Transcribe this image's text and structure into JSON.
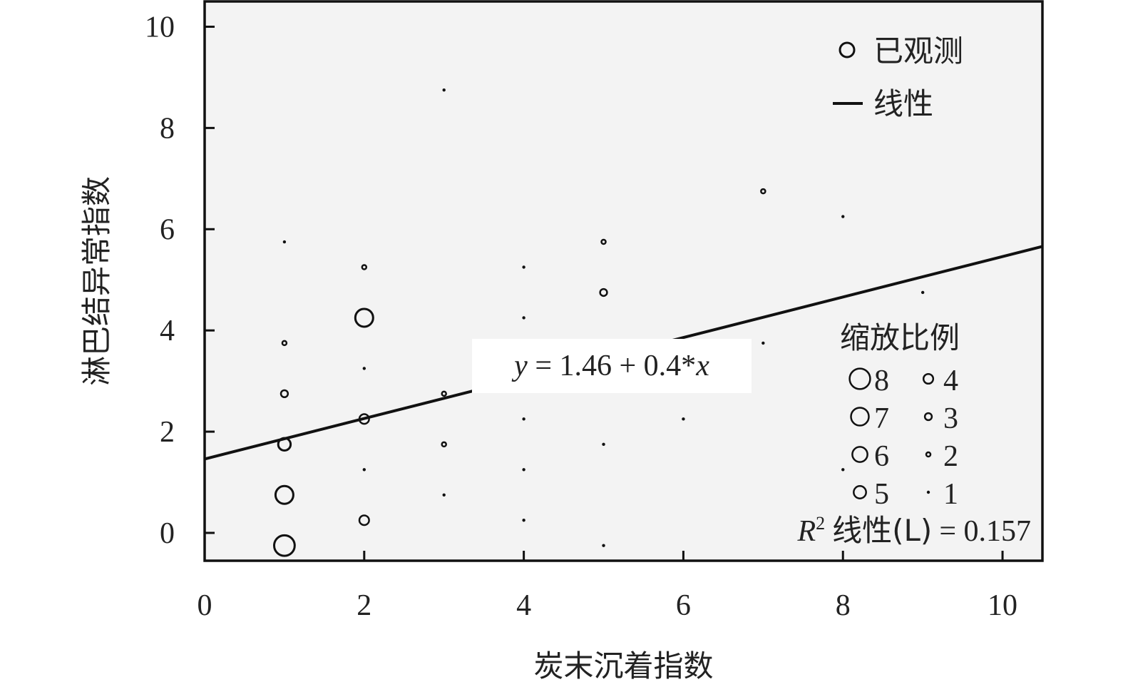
{
  "chart_data": {
    "type": "scatter",
    "xlabel": "炭末沉着指数",
    "ylabel": "淋巴结异常指数",
    "xlim": [
      0,
      10.5
    ],
    "ylim": [
      -0.55,
      10.5
    ],
    "xticks": [
      0,
      2,
      4,
      6,
      8,
      10
    ],
    "yticks": [
      0,
      2,
      4,
      6,
      8,
      10
    ],
    "grid": false,
    "background": "#f3f3f3",
    "points": [
      {
        "x": 1,
        "y": -0.25,
        "n": 8
      },
      {
        "x": 1,
        "y": 0.75,
        "n": 7
      },
      {
        "x": 1,
        "y": 1.75,
        "n": 5
      },
      {
        "x": 1,
        "y": 2.75,
        "n": 3
      },
      {
        "x": 1,
        "y": 3.75,
        "n": 2
      },
      {
        "x": 1,
        "y": 5.75,
        "n": 1
      },
      {
        "x": 2,
        "y": 0.25,
        "n": 4
      },
      {
        "x": 2,
        "y": 1.25,
        "n": 1
      },
      {
        "x": 2,
        "y": 2.25,
        "n": 4
      },
      {
        "x": 2,
        "y": 3.25,
        "n": 1
      },
      {
        "x": 2,
        "y": 4.25,
        "n": 7
      },
      {
        "x": 2,
        "y": 5.25,
        "n": 2
      },
      {
        "x": 3,
        "y": 0.75,
        "n": 1
      },
      {
        "x": 3,
        "y": 1.75,
        "n": 2
      },
      {
        "x": 3,
        "y": 2.75,
        "n": 2
      },
      {
        "x": 3,
        "y": 8.75,
        "n": 1
      },
      {
        "x": 4,
        "y": 0.25,
        "n": 1
      },
      {
        "x": 4,
        "y": 1.25,
        "n": 1
      },
      {
        "x": 4,
        "y": 2.25,
        "n": 1
      },
      {
        "x": 4,
        "y": 4.25,
        "n": 1
      },
      {
        "x": 4,
        "y": 5.25,
        "n": 1
      },
      {
        "x": 5,
        "y": -0.25,
        "n": 1
      },
      {
        "x": 5,
        "y": 1.75,
        "n": 1
      },
      {
        "x": 5,
        "y": 4.75,
        "n": 3
      },
      {
        "x": 5,
        "y": 5.75,
        "n": 2
      },
      {
        "x": 6,
        "y": 2.25,
        "n": 1
      },
      {
        "x": 7,
        "y": 3.75,
        "n": 1
      },
      {
        "x": 7,
        "y": 6.75,
        "n": 2
      },
      {
        "x": 8,
        "y": 1.25,
        "n": 1
      },
      {
        "x": 8,
        "y": 6.25,
        "n": 1
      },
      {
        "x": 9,
        "y": 4.75,
        "n": 1
      }
    ],
    "fit_line": {
      "intercept": 1.46,
      "slope": 0.4,
      "x_range": [
        0,
        10.5
      ]
    },
    "equation_label": "y = 1.46 + 0.4*x",
    "legend": {
      "position": "top-right",
      "observed_label": "已观测",
      "linear_label": "线性"
    },
    "size_scale": {
      "title": "缩放比例",
      "left_column": [
        8,
        7,
        6,
        5
      ],
      "right_column": [
        4,
        3,
        2,
        1
      ]
    },
    "r2": {
      "prefix": "R",
      "superscript": "2",
      "label": "线性(L)",
      "value": "= 0.157"
    }
  }
}
